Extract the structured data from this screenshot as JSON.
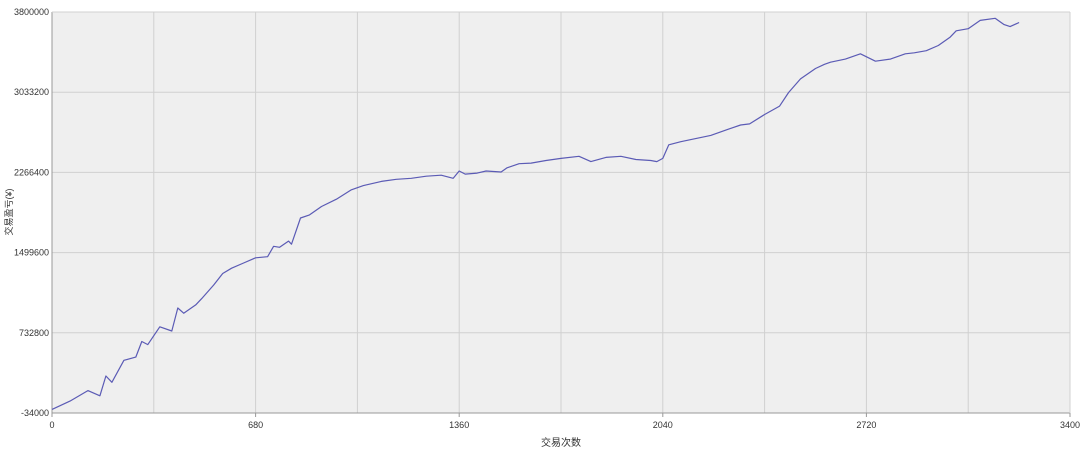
{
  "chart_data": {
    "type": "line",
    "title": "",
    "xlabel": "交易次数",
    "ylabel": "交易盈亏(¥)",
    "xlim": [
      0,
      3400
    ],
    "ylim": [
      -34000,
      3800000
    ],
    "x_ticks": [
      0,
      680,
      1360,
      2040,
      2720,
      3400
    ],
    "x_tick_labels": [
      "0",
      "680",
      "1360",
      "2040",
      "2720",
      "3400"
    ],
    "y_ticks": [
      -34000,
      732800,
      1499600,
      2266400,
      3033200,
      3800000
    ],
    "y_tick_labels": [
      "-34000",
      "732800",
      "1499600",
      "2266400",
      "3033200",
      "3800000"
    ],
    "x_minor_gridlines": [
      340,
      1020,
      1700,
      2380,
      3060
    ],
    "grid": true,
    "legend": "none",
    "colors": {
      "line": "#5b5bb5",
      "plot_bg": "#efefef",
      "grid": "#d0d0d0",
      "axis": "#999999"
    },
    "series": [
      {
        "x": [
          0,
          60,
          120,
          160,
          180,
          200,
          240,
          280,
          300,
          320,
          360,
          400,
          420,
          440,
          480,
          500,
          540,
          570,
          600,
          640,
          680,
          720,
          740,
          760,
          790,
          800,
          830,
          860,
          900,
          950,
          1000,
          1040,
          1100,
          1150,
          1200,
          1250,
          1300,
          1340,
          1360,
          1380,
          1420,
          1450,
          1500,
          1520,
          1560,
          1600,
          1650,
          1700,
          1760,
          1800,
          1850,
          1900,
          1950,
          2000,
          2020,
          2040,
          2060,
          2100,
          2150,
          2200,
          2260,
          2300,
          2330,
          2380,
          2430,
          2460,
          2500,
          2550,
          2580,
          2600,
          2650,
          2700,
          2750,
          2800,
          2850,
          2880,
          2920,
          2960,
          3000,
          3020,
          3060,
          3100,
          3150,
          3180,
          3200,
          3230
        ],
        "values": [
          0,
          80000,
          180000,
          130000,
          320000,
          260000,
          470000,
          500000,
          650000,
          620000,
          790000,
          750000,
          970000,
          920000,
          1000000,
          1060000,
          1190000,
          1300000,
          1350000,
          1400000,
          1450000,
          1460000,
          1560000,
          1550000,
          1610000,
          1580000,
          1830000,
          1860000,
          1940000,
          2010000,
          2100000,
          2140000,
          2180000,
          2200000,
          2210000,
          2230000,
          2240000,
          2210000,
          2280000,
          2250000,
          2260000,
          2280000,
          2270000,
          2310000,
          2350000,
          2355000,
          2380000,
          2400000,
          2420000,
          2370000,
          2410000,
          2420000,
          2390000,
          2380000,
          2370000,
          2400000,
          2530000,
          2560000,
          2590000,
          2620000,
          2680000,
          2720000,
          2730000,
          2820000,
          2900000,
          3030000,
          3160000,
          3260000,
          3300000,
          3320000,
          3350000,
          3400000,
          3330000,
          3350000,
          3400000,
          3410000,
          3430000,
          3480000,
          3560000,
          3620000,
          3640000,
          3720000,
          3740000,
          3680000,
          3660000,
          3700000
        ]
      }
    ]
  }
}
